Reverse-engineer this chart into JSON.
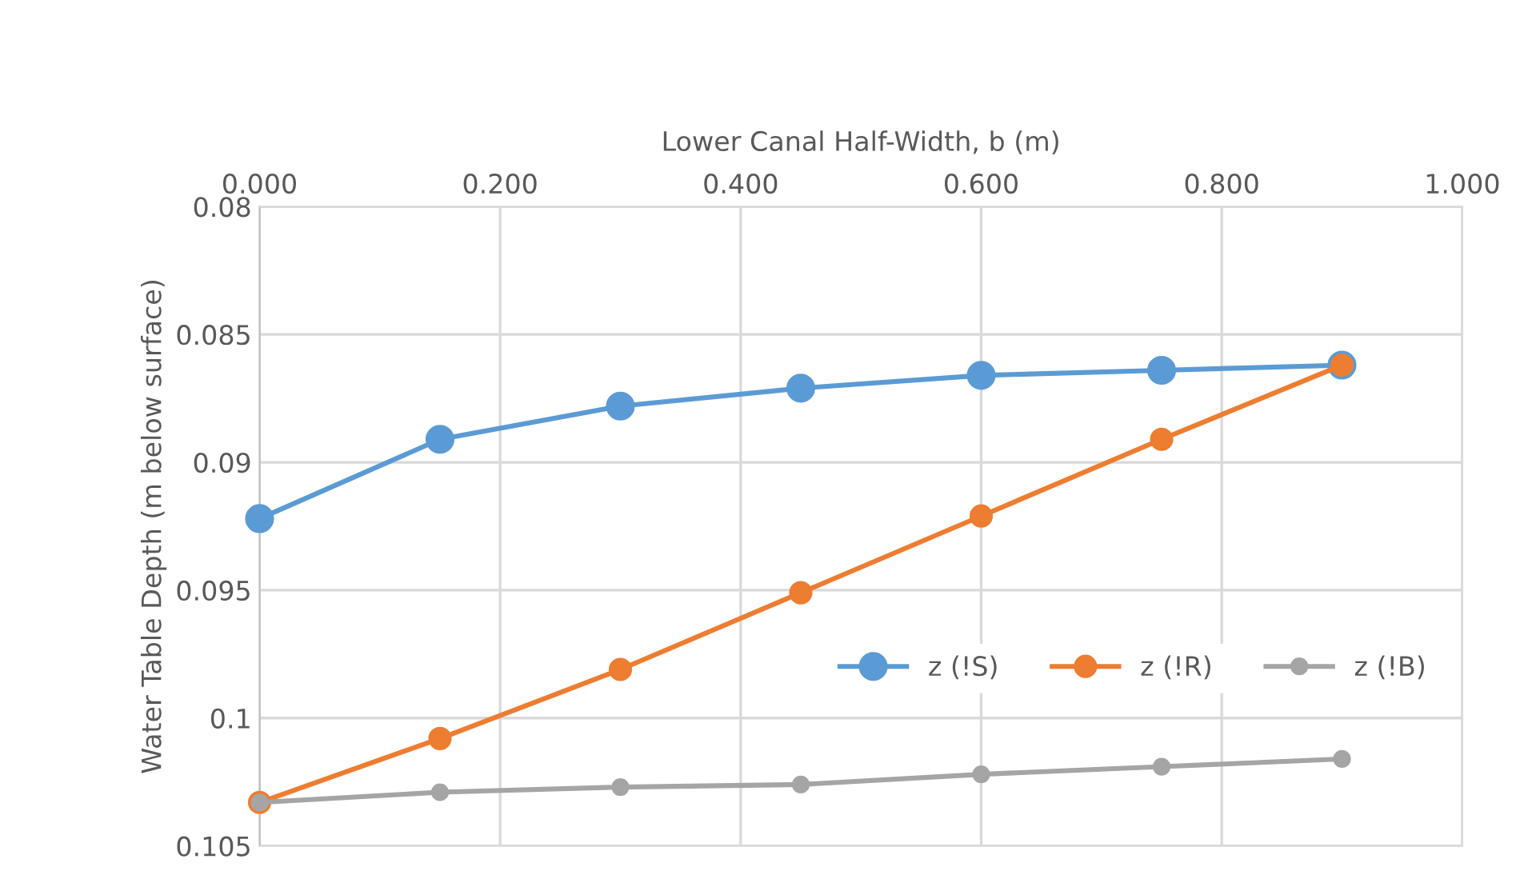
{
  "chart_data": {
    "type": "line",
    "xlabel": "Lower Canal Half-Width, b (m)",
    "ylabel": "Water Table Depth (m below surface)",
    "x": [
      0,
      0.15,
      0.3,
      0.45,
      0.6,
      0.75,
      0.9
    ],
    "series": [
      {
        "name": "z (!S)",
        "color": "#5b9bd5",
        "values": [
          0.0922,
          0.0891,
          0.0878,
          0.0871,
          0.0866,
          0.0864,
          0.0862
        ]
      },
      {
        "name": "z (!R)",
        "color": "#ed7d31",
        "values": [
          0.1033,
          0.1008,
          0.0981,
          0.0951,
          0.0921,
          0.0891,
          0.0862
        ]
      },
      {
        "name": "z (!B)",
        "color": "#a5a5a5",
        "values": [
          0.1033,
          0.1029,
          0.1027,
          0.1026,
          0.1022,
          0.1019,
          0.1016
        ]
      }
    ],
    "xlim": [
      0,
      1.0
    ],
    "xticks": [
      {
        "value": 0,
        "label": "0.000"
      },
      {
        "value": 0.2,
        "label": "0.200"
      },
      {
        "value": 0.4,
        "label": "0.400"
      },
      {
        "value": 0.6,
        "label": "0.600"
      },
      {
        "value": 0.8,
        "label": "0.800"
      },
      {
        "value": 1.0,
        "label": "1.000"
      }
    ],
    "ylim": [
      0.105,
      0.08
    ],
    "yticks": [
      0.08,
      0.085,
      0.09,
      0.095,
      0.1,
      0.105
    ],
    "grid": true,
    "legend": "bottom right",
    "marker": "circle",
    "line_style": "solid"
  }
}
